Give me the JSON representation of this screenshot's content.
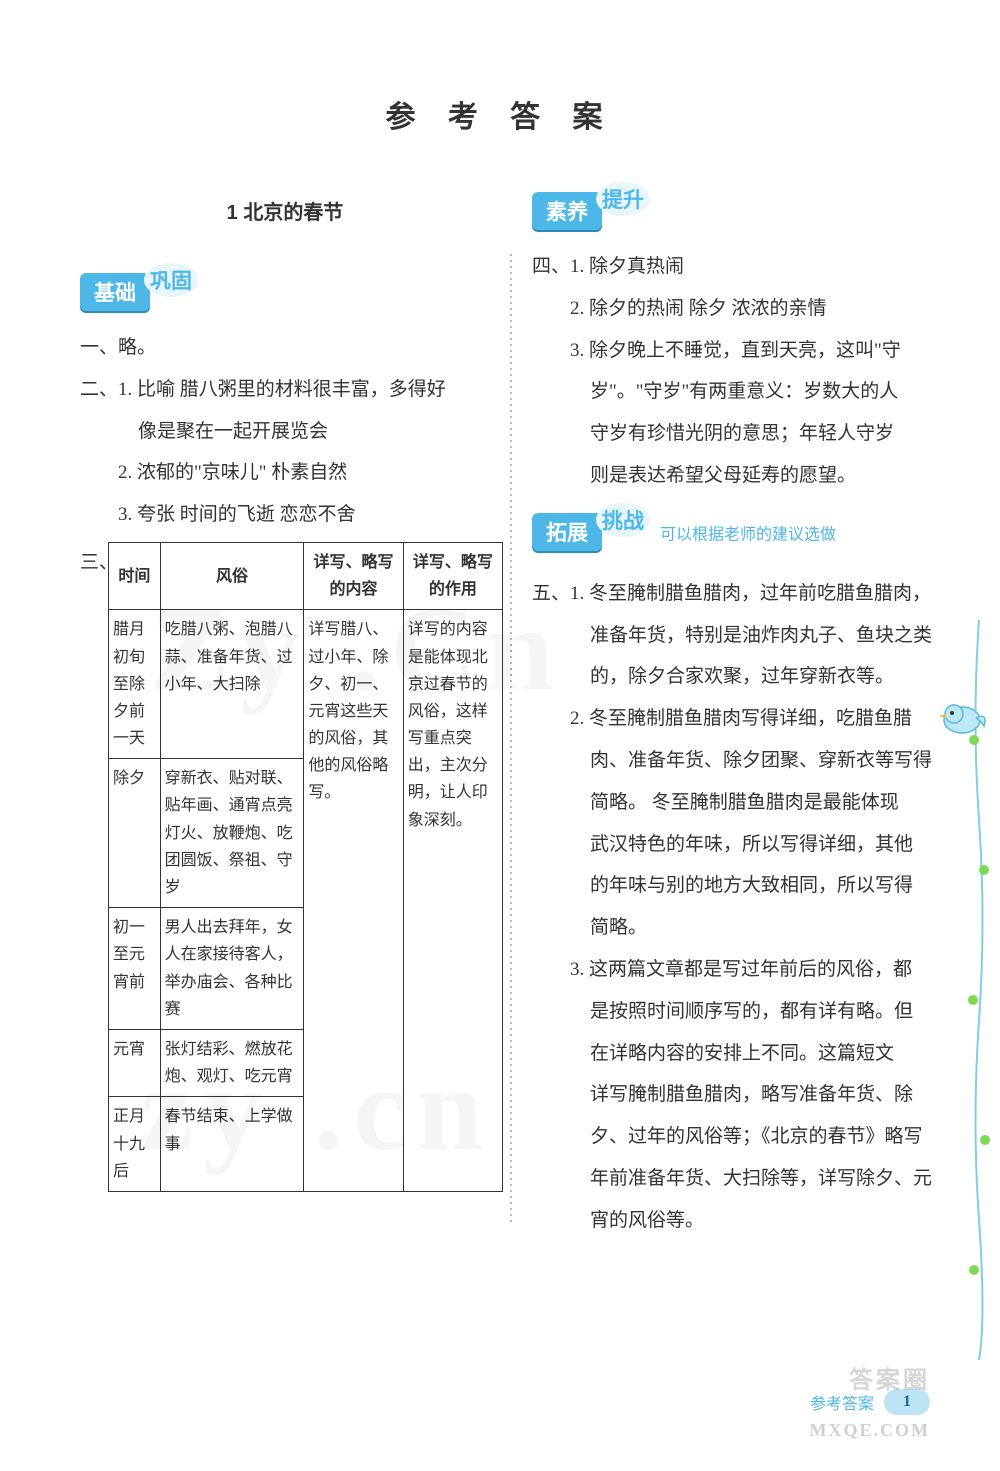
{
  "page": {
    "title": "参 考 答 案",
    "title_fontsize": 30,
    "title_color": "#333333",
    "background_color": "#ffffff"
  },
  "watermarks": {
    "w1_text": "Zy  .Cn",
    "w2_text": "zy  .cn",
    "w_color": "rgba(0,0,0,0.05)"
  },
  "left": {
    "lesson": "1   北京的春节",
    "lesson_fontsize": 20,
    "badge1_main": "基础",
    "badge1_sub": "巩固",
    "line1": "一、略。",
    "line2a": "二、1. 比喻   腊八粥里的材料很丰富，多得好",
    "line2b": "像是聚在一起开展览会",
    "line3": "2. 浓郁的\"京味儿\"   朴素自然",
    "line4": "3. 夸张   时间的飞逝   恋恋不舍",
    "row3_prefix": "三、",
    "table": {
      "headers": [
        "时间",
        "风俗",
        "详写、略写的内容",
        "详写、略写的作用"
      ],
      "col_widths": [
        "52px",
        "145px",
        "100px",
        "100px"
      ],
      "header_fontsize": 16,
      "cell_fontsize": 16,
      "border_color": "#333333",
      "rows": [
        {
          "c1": "腊月初旬至除夕前一天",
          "c2": "吃腊八粥、泡腊八蒜、准备年货、过小年、大扫除"
        },
        {
          "c1": "除夕",
          "c2": "穿新衣、贴对联、贴年画、通宵点亮灯火、放鞭炮、吃团圆饭、祭祖、守岁"
        },
        {
          "c1": "初一至元宵前",
          "c2": "男人出去拜年，女人在家接待客人，举办庙会、各种比赛"
        },
        {
          "c1": "元宵",
          "c2": "张灯结彩、燃放花炮、观灯、吃元宵"
        },
        {
          "c1": "正月十九后",
          "c2": "春节结束、上学做事"
        }
      ],
      "merged_c3": "详写腊八、过小年、除夕、初一、元宵这些天的风俗，其他的风俗略写。",
      "merged_c4": "详写的内容是能体现北京过春节的风俗，这样写重点突出，主次分明，让人印象深刻。"
    }
  },
  "right": {
    "badge2_main": "素养",
    "badge2_sub": "提升",
    "r4_1": "四、1. 除夕真热闹",
    "r4_2": "2. 除夕的热闹   除夕   浓浓的亲情",
    "r4_3a": "3. 除夕晚上不睡觉，直到天亮，这叫\"守",
    "r4_3b": "岁\"。\"守岁\"有两重意义：岁数大的人",
    "r4_3c": "守岁有珍惜光阴的意思；年轻人守岁",
    "r4_3d": "则是表达希望父母延寿的愿望。",
    "badge3_main": "拓展",
    "badge3_sub": "挑战",
    "badge3_tail": "可以根据老师的建议选做",
    "r5_1a": "五、1. 冬至腌制腊鱼腊肉，过年前吃腊鱼腊肉，",
    "r5_1b": "准备年货，特别是油炸肉丸子、鱼块之类",
    "r5_1c": "的，除夕合家欢聚，过年穿新衣等。",
    "r5_2a": "2. 冬至腌制腊鱼腊肉写得详细，吃腊鱼腊",
    "r5_2b": "肉、准备年货、除夕团聚、穿新衣等写得",
    "r5_2c": "简略。 冬至腌制腊鱼腊肉是最能体现",
    "r5_2d": "武汉特色的年味，所以写得详细，其他",
    "r5_2e": "的年味与别的地方大致相同，所以写得",
    "r5_2f": "简略。",
    "r5_3a": "3. 这两篇文章都是写过年前后的风俗，都",
    "r5_3b": "是按照时间顺序写的，都有详有略。但",
    "r5_3c": "在详略内容的安排上不同。这篇短文",
    "r5_3d": "详写腌制腊鱼腊肉，略写准备年货、除",
    "r5_3e": "夕、过年的风俗等；《北京的春节》略写",
    "r5_3f": "年前准备年货、大扫除等，详写除夕、元",
    "r5_3g": "宵的风俗等。"
  },
  "badge_style": {
    "main_bg": "#4db8e8",
    "main_color": "#ffffff",
    "sub_color": "#4db8e8",
    "fontsize": 21
  },
  "footer": {
    "label": "参考答案",
    "page": "1",
    "label_color": "#4db8e8",
    "watermark_small1": "答案圈",
    "watermark_small2": "MXQE.COM"
  },
  "body_fontsize": 19,
  "body_line_height": 2.2,
  "decoration": {
    "vine_color": "#7ed0e8",
    "leaf_color": "#7ed957",
    "bird_color": "#9dd9ef"
  }
}
